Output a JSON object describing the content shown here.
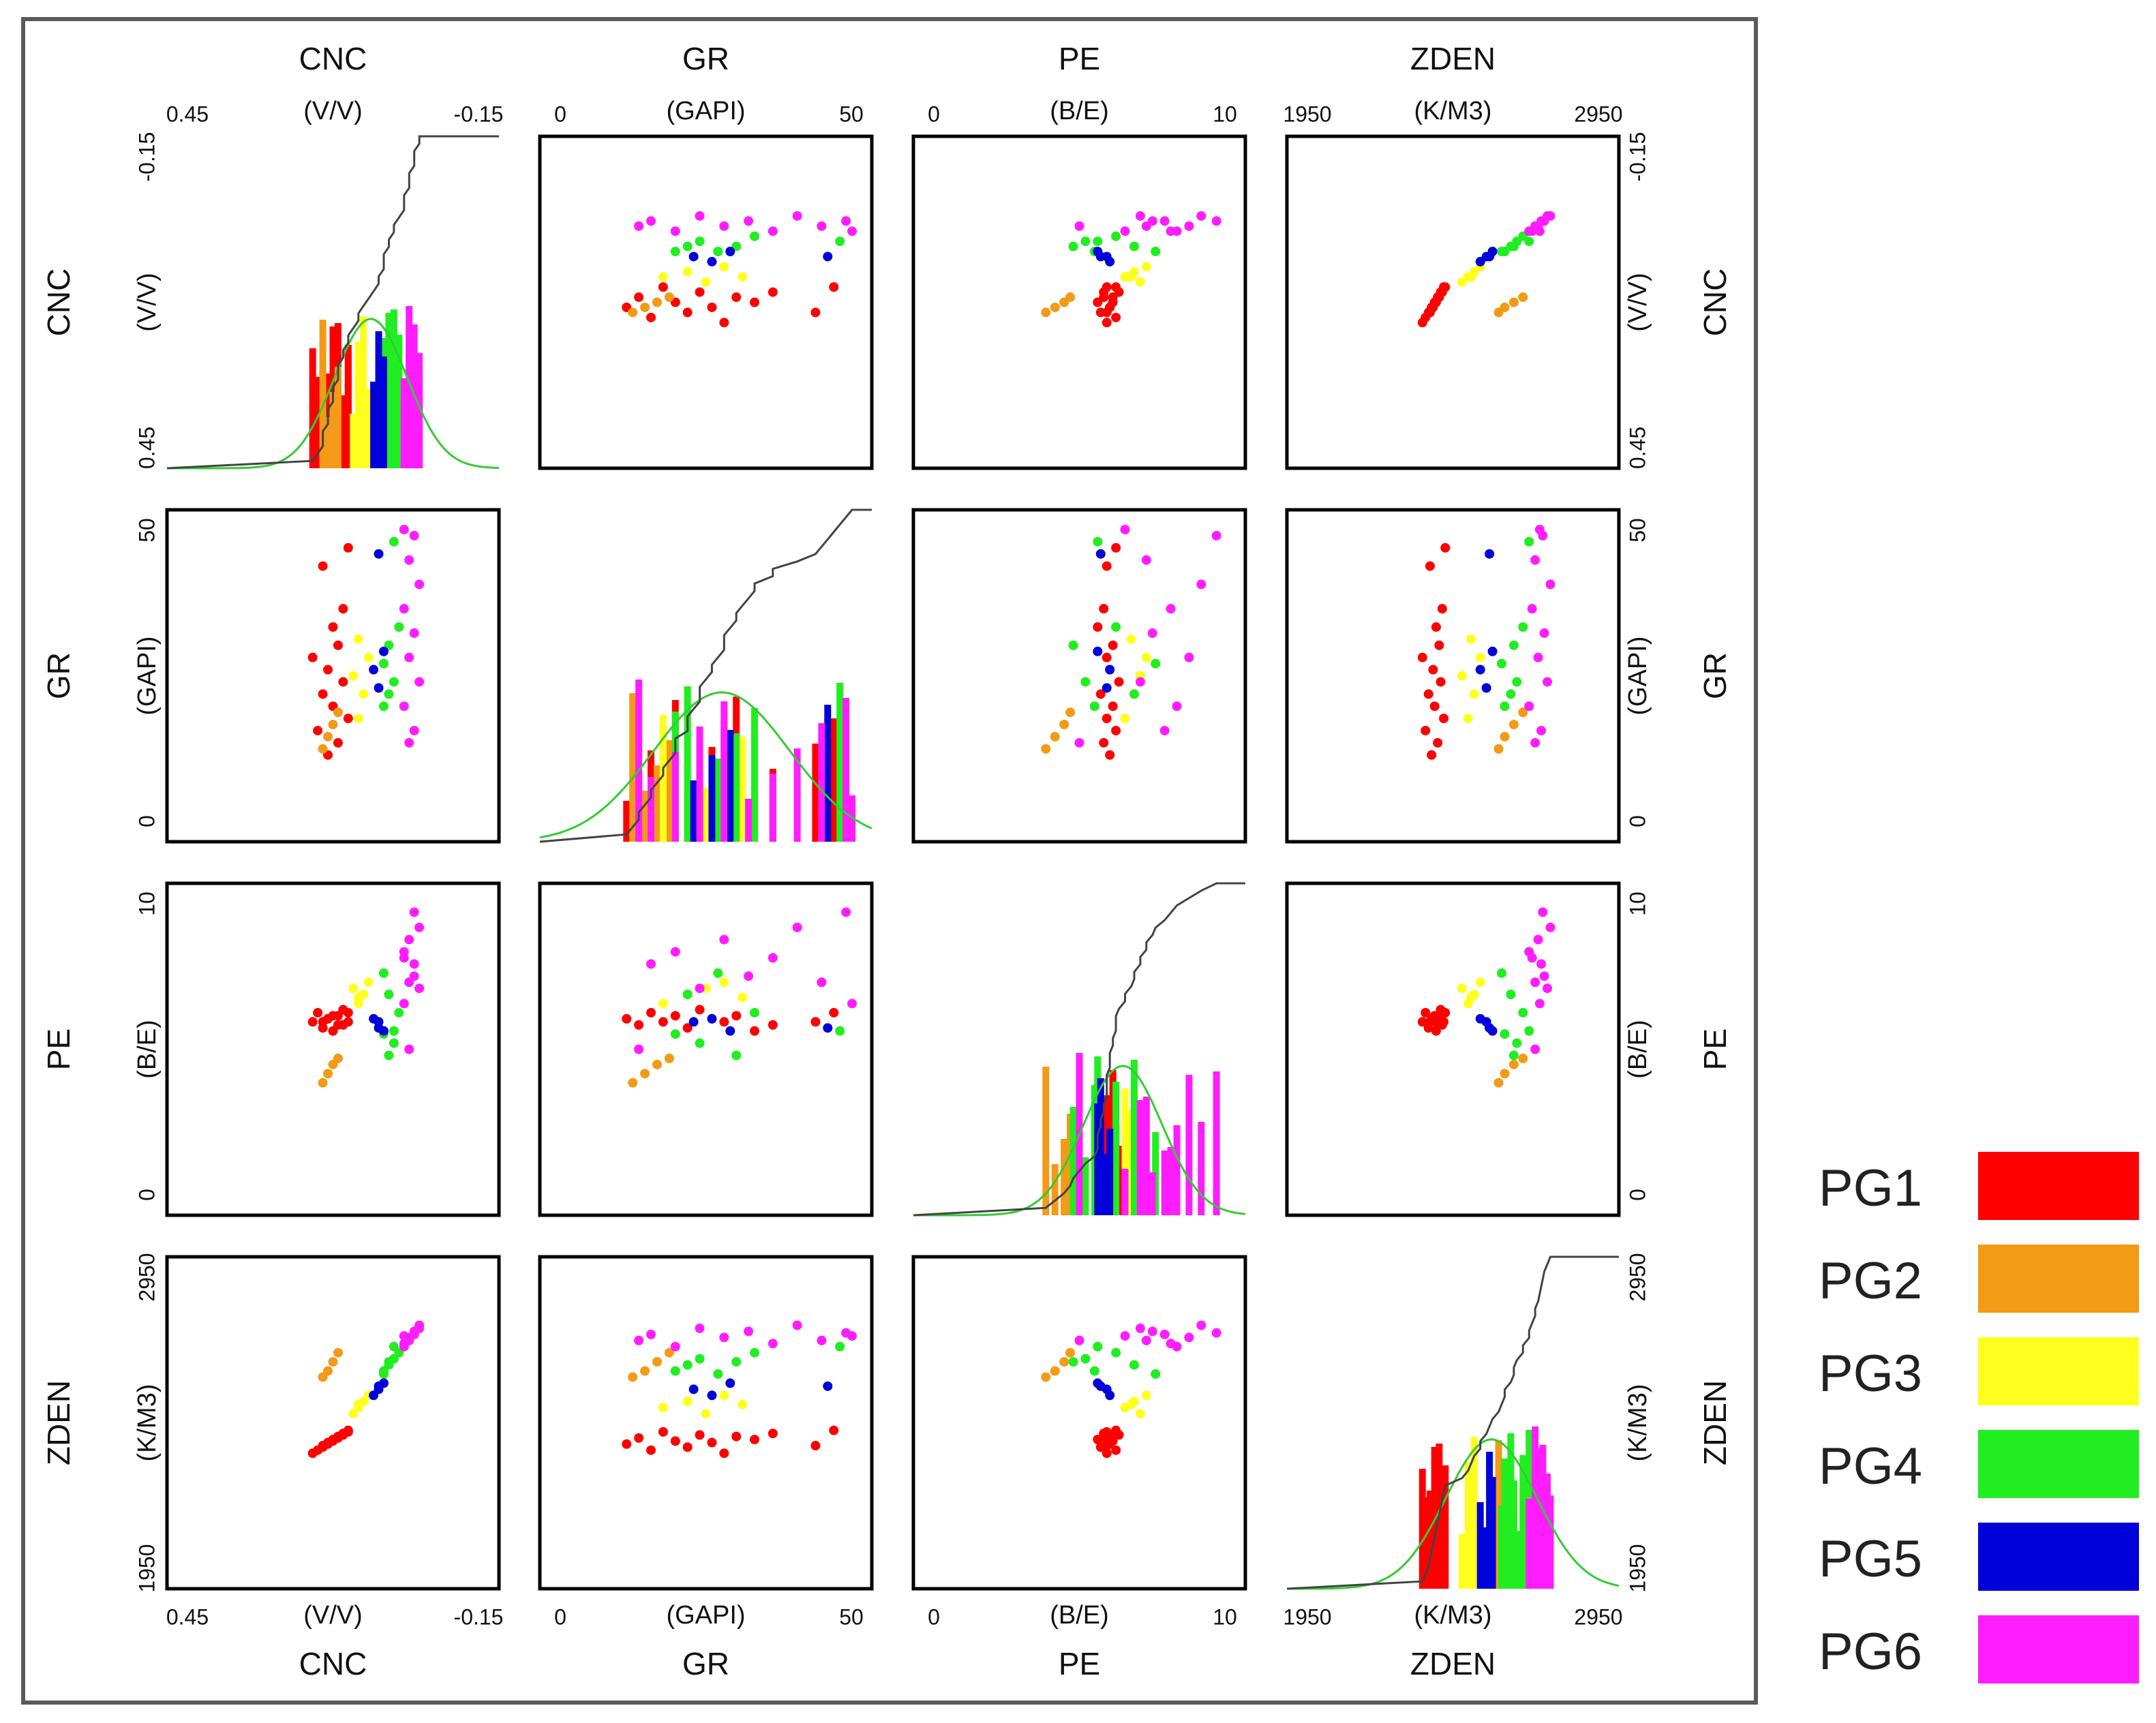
{
  "variables": [
    {
      "name": "CNC",
      "unit": "(V/V)",
      "min_label": "0.45",
      "max_label": "-0.15",
      "range": [
        0.45,
        -0.15
      ]
    },
    {
      "name": "GR",
      "unit": "(GAPI)",
      "min_label": "0",
      "max_label": "50",
      "range": [
        0,
        50
      ]
    },
    {
      "name": "PE",
      "unit": "(B/E)",
      "min_label": "0",
      "max_label": "10",
      "range": [
        0,
        10
      ]
    },
    {
      "name": "ZDEN",
      "unit": "(K/M3)",
      "min_label": "1950",
      "max_label": "2950",
      "range": [
        1950,
        2950
      ]
    }
  ],
  "legend": {
    "items": [
      {
        "label": "PG1",
        "color": "#ff0000"
      },
      {
        "label": "PG2",
        "color": "#f39a17"
      },
      {
        "label": "PG3",
        "color": "#ffff1f"
      },
      {
        "label": "PG4",
        "color": "#21ee21"
      },
      {
        "label": "PG5",
        "color": "#0000d8"
      },
      {
        "label": "PG6",
        "color": "#ff1dff"
      }
    ]
  },
  "chart_data": {
    "type": "scatter",
    "subtype": "scatter-matrix",
    "title": "",
    "panels": "4x4 matrix: off-diagonal = scatter plots of row variable vs column variable; diagonal = histogram per group with fitted normal curve and cumulative curve",
    "groups": [
      "PG1",
      "PG2",
      "PG3",
      "PG4",
      "PG5",
      "PG6"
    ],
    "points": {
      "PG1": [
        {
          "CNC": 0.16,
          "GR": 12,
          "PE": 6.0,
          "ZDEN": 2380
        },
        {
          "CNC": 0.14,
          "GR": 14,
          "PE": 5.8,
          "ZDEN": 2400
        },
        {
          "CNC": 0.18,
          "GR": 16,
          "PE": 6.2,
          "ZDEN": 2360
        },
        {
          "CNC": 0.12,
          "GR": 18,
          "PE": 5.9,
          "ZDEN": 2420
        },
        {
          "CNC": 0.15,
          "GR": 20,
          "PE": 6.1,
          "ZDEN": 2390
        },
        {
          "CNC": 0.17,
          "GR": 22,
          "PE": 5.7,
          "ZDEN": 2370
        },
        {
          "CNC": 0.13,
          "GR": 24,
          "PE": 6.3,
          "ZDEN": 2410
        },
        {
          "CNC": 0.16,
          "GR": 26,
          "PE": 6.0,
          "ZDEN": 2385
        },
        {
          "CNC": 0.19,
          "GR": 28,
          "PE": 5.9,
          "ZDEN": 2350
        },
        {
          "CNC": 0.14,
          "GR": 30,
          "PE": 6.1,
          "ZDEN": 2405
        },
        {
          "CNC": 0.15,
          "GR": 33,
          "PE": 5.6,
          "ZDEN": 2395
        },
        {
          "CNC": 0.13,
          "GR": 36,
          "PE": 5.8,
          "ZDEN": 2415
        },
        {
          "CNC": 0.17,
          "GR": 43,
          "PE": 5.9,
          "ZDEN": 2375
        },
        {
          "CNC": 0.12,
          "GR": 46,
          "PE": 6.2,
          "ZDEN": 2425
        }
      ],
      "PG2": [
        {
          "CNC": 0.17,
          "GR": 13,
          "PE": 3.9,
          "ZDEN": 2600
        },
        {
          "CNC": 0.16,
          "GR": 15,
          "PE": 4.2,
          "ZDEN": 2620
        },
        {
          "CNC": 0.15,
          "GR": 17,
          "PE": 4.5,
          "ZDEN": 2650
        },
        {
          "CNC": 0.14,
          "GR": 19,
          "PE": 4.7,
          "ZDEN": 2680
        }
      ],
      "PG3": [
        {
          "CNC": 0.1,
          "GR": 18,
          "PE": 6.5,
          "ZDEN": 2500
        },
        {
          "CNC": 0.09,
          "GR": 22,
          "PE": 6.8,
          "ZDEN": 2520
        },
        {
          "CNC": 0.11,
          "GR": 25,
          "PE": 7.0,
          "ZDEN": 2480
        },
        {
          "CNC": 0.08,
          "GR": 28,
          "PE": 7.2,
          "ZDEN": 2540
        },
        {
          "CNC": 0.1,
          "GR": 31,
          "PE": 6.7,
          "ZDEN": 2510
        }
      ],
      "PG4": [
        {
          "CNC": 0.05,
          "GR": 20,
          "PE": 5.5,
          "ZDEN": 2620
        },
        {
          "CNC": 0.04,
          "GR": 22,
          "PE": 6.8,
          "ZDEN": 2640
        },
        {
          "CNC": 0.03,
          "GR": 24,
          "PE": 5.2,
          "ZDEN": 2660
        },
        {
          "CNC": 0.05,
          "GR": 27,
          "PE": 7.5,
          "ZDEN": 2610
        },
        {
          "CNC": 0.04,
          "GR": 30,
          "PE": 4.8,
          "ZDEN": 2650
        },
        {
          "CNC": 0.02,
          "GR": 33,
          "PE": 6.2,
          "ZDEN": 2680
        },
        {
          "CNC": 0.03,
          "GR": 47,
          "PE": 5.6,
          "ZDEN": 2700
        }
      ],
      "PG5": [
        {
          "CNC": 0.06,
          "GR": 23,
          "PE": 5.9,
          "ZDEN": 2560
        },
        {
          "CNC": 0.07,
          "GR": 26,
          "PE": 6.0,
          "ZDEN": 2540
        },
        {
          "CNC": 0.05,
          "GR": 29,
          "PE": 5.6,
          "ZDEN": 2580
        },
        {
          "CNC": 0.06,
          "GR": 45,
          "PE": 5.7,
          "ZDEN": 2570
        }
      ],
      "PG6": [
        {
          "CNC": 0.0,
          "GR": 14,
          "PE": 5.0,
          "ZDEN": 2720
        },
        {
          "CNC": -0.01,
          "GR": 16,
          "PE": 7.8,
          "ZDEN": 2740
        },
        {
          "CNC": 0.01,
          "GR": 20,
          "PE": 8.2,
          "ZDEN": 2700
        },
        {
          "CNC": -0.02,
          "GR": 24,
          "PE": 7.0,
          "ZDEN": 2760
        },
        {
          "CNC": 0.0,
          "GR": 28,
          "PE": 8.6,
          "ZDEN": 2730
        },
        {
          "CNC": -0.01,
          "GR": 32,
          "PE": 7.4,
          "ZDEN": 2750
        },
        {
          "CNC": 0.01,
          "GR": 36,
          "PE": 8.0,
          "ZDEN": 2710
        },
        {
          "CNC": -0.02,
          "GR": 40,
          "PE": 9.0,
          "ZDEN": 2770
        },
        {
          "CNC": 0.0,
          "GR": 44,
          "PE": 7.2,
          "ZDEN": 2720
        },
        {
          "CNC": -0.01,
          "GR": 48,
          "PE": 9.5,
          "ZDEN": 2745
        },
        {
          "CNC": 0.01,
          "GR": 49,
          "PE": 6.5,
          "ZDEN": 2735
        }
      ]
    },
    "diagonal": {
      "curves": [
        "normal fit (green)",
        "cumulative distribution (black)"
      ]
    },
    "axes": {
      "top_labels": [
        "CNC",
        "GR",
        "PE",
        "ZDEN"
      ],
      "bottom_labels": [
        "CNC",
        "GR",
        "PE",
        "ZDEN"
      ],
      "left_labels": [
        "CNC",
        "GR",
        "PE",
        "ZDEN"
      ],
      "right_labels": [
        "CNC",
        "GR",
        "PE",
        "ZDEN"
      ]
    }
  }
}
